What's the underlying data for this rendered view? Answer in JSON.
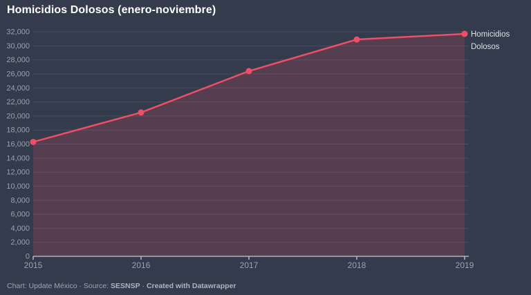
{
  "header": {
    "title": "Homicidios Dolosos (enero-noviembre)"
  },
  "chart_data": {
    "type": "line",
    "categories": [
      "2015",
      "2016",
      "2017",
      "2018",
      "2019"
    ],
    "series": [
      {
        "name": "Homicidios Dolosos",
        "values": [
          16300,
          20500,
          26400,
          30900,
          31700
        ]
      }
    ],
    "title": "Homicidios Dolosos (enero-noviembre)",
    "xlabel": "",
    "ylabel": "",
    "ylim": [
      0,
      32000
    ],
    "ytick_step": 2000,
    "grid": "horizontal",
    "area_fill": true,
    "annotation": {
      "lines": [
        "Homicidios",
        "Dolosos"
      ]
    },
    "legend_position": "right-of-last-point"
  },
  "colors": {
    "background": "#333b4c",
    "accent": "#ef4e66",
    "area_opacity": 0.18,
    "gridline": "#454f61",
    "baseline": "#c7cbd2",
    "tick": "#c7cbd2",
    "axis_label": "#9aa3ae",
    "annotation_text": "#dde1e6"
  },
  "footer": {
    "prefix": "Chart: Update México · Source: ",
    "source_bold": "SESNSP",
    "separator": " · ",
    "credit_bold": "Created with Datawrapper"
  }
}
